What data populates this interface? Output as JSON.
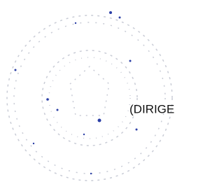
{
  "stamp": {
    "text": "(DIRIGE"
  }
}
